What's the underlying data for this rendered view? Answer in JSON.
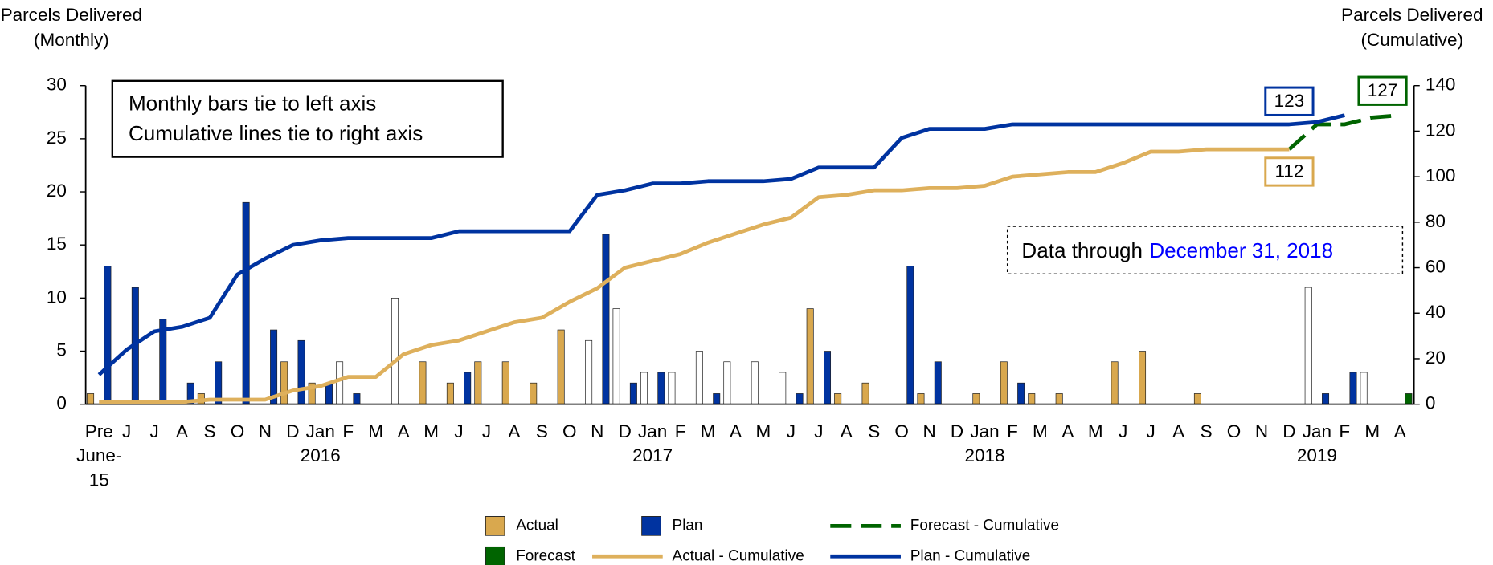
{
  "chart_data": {
    "type": "bar",
    "y_title": "Parcels Delivered\n(Monthly)",
    "y2_title": "Parcels Delivered\n(Cumulative)",
    "note": [
      "Monthly bars tie to left axis",
      "Cumulative lines tie to right axis"
    ],
    "data_through": {
      "text": "Data through",
      "date": "December 31, 2018",
      "date_color": "#0000ff"
    },
    "annotations": [
      {
        "text": "123",
        "color": "#0033a0"
      },
      {
        "text": "112",
        "color": "#d9a84e"
      },
      {
        "text": "127",
        "color": "#006400"
      }
    ],
    "categories": [
      "Pre",
      "J",
      "J",
      "A",
      "S",
      "O",
      "N",
      "D",
      "Jan",
      "F",
      "M",
      "A",
      "M",
      "J",
      "J",
      "A",
      "S",
      "O",
      "N",
      "D",
      "Jan",
      "F",
      "M",
      "A",
      "M",
      "J",
      "J",
      "A",
      "S",
      "O",
      "N",
      "D",
      "Jan",
      "F",
      "M",
      "A",
      "M",
      "J",
      "J",
      "A",
      "S",
      "O",
      "N",
      "D",
      "Jan",
      "F",
      "M",
      "A"
    ],
    "category_sublabels": [
      "June-\n15",
      null,
      null,
      null,
      null,
      null,
      null,
      null,
      "2016",
      null,
      null,
      null,
      null,
      null,
      null,
      null,
      null,
      null,
      null,
      null,
      "2017",
      null,
      null,
      null,
      null,
      null,
      null,
      null,
      null,
      null,
      null,
      null,
      "2018",
      null,
      null,
      null,
      null,
      null,
      null,
      null,
      null,
      null,
      null,
      null,
      "2019",
      null,
      null,
      null
    ],
    "ylim": [
      0,
      30
    ],
    "yticks": [
      0,
      5,
      10,
      15,
      20,
      25,
      30
    ],
    "y2lim": [
      0,
      140
    ],
    "y2ticks": [
      0,
      20,
      40,
      60,
      80,
      100,
      120,
      140
    ],
    "series": [
      {
        "name": "Actual",
        "type": "bar",
        "color": "#d9a84e",
        "values": [
          1,
          null,
          null,
          null,
          1,
          null,
          null,
          4,
          2,
          null,
          null,
          null,
          4,
          2,
          4,
          4,
          2,
          7,
          null,
          null,
          null,
          null,
          null,
          null,
          null,
          null,
          9,
          1,
          2,
          null,
          1,
          null,
          1,
          4,
          1,
          1,
          null,
          4,
          5,
          null,
          1,
          null,
          null,
          null,
          null,
          null,
          null,
          null
        ]
      },
      {
        "name": "Plan",
        "type": "bar",
        "color": "#0033a0",
        "values": [
          13,
          11,
          8,
          2,
          4,
          19,
          7,
          6,
          2,
          1,
          null,
          null,
          null,
          3,
          null,
          null,
          null,
          null,
          16,
          2,
          3,
          null,
          1,
          null,
          null,
          1,
          5,
          null,
          null,
          13,
          4,
          null,
          null,
          2,
          null,
          null,
          null,
          null,
          null,
          null,
          null,
          null,
          null,
          null,
          1,
          3,
          null,
          null
        ]
      },
      {
        "name": "Forecast - Cumulative",
        "type": "line",
        "axis": "y2",
        "dash": true,
        "color": "#006400",
        "values": [
          null,
          null,
          null,
          null,
          null,
          null,
          null,
          null,
          null,
          null,
          null,
          null,
          null,
          null,
          null,
          null,
          null,
          null,
          null,
          null,
          null,
          null,
          null,
          null,
          null,
          null,
          null,
          null,
          null,
          null,
          null,
          null,
          null,
          null,
          null,
          null,
          null,
          null,
          null,
          null,
          null,
          null,
          null,
          112,
          123,
          123,
          126,
          127
        ]
      },
      {
        "name": "Forecast",
        "type": "bar",
        "color": "#006400",
        "values": [
          null,
          null,
          null,
          null,
          null,
          null,
          null,
          null,
          null,
          null,
          null,
          null,
          null,
          null,
          null,
          null,
          null,
          null,
          null,
          null,
          null,
          null,
          null,
          null,
          null,
          null,
          null,
          null,
          null,
          null,
          null,
          null,
          null,
          null,
          null,
          null,
          null,
          null,
          null,
          null,
          null,
          null,
          null,
          null,
          null,
          null,
          null,
          1
        ]
      },
      {
        "name": "Actual - Cumulative",
        "type": "line",
        "axis": "y2",
        "color": "#deb05c",
        "values": [
          1,
          1,
          1,
          1,
          2,
          2,
          2,
          6,
          8,
          12,
          12,
          22,
          26,
          28,
          32,
          36,
          38,
          45,
          51,
          60,
          63,
          66,
          71,
          75,
          79,
          82,
          91,
          92,
          94,
          94,
          95,
          95,
          96,
          100,
          101,
          102,
          102,
          106,
          111,
          111,
          112,
          112,
          112,
          112,
          null,
          null,
          null,
          null
        ]
      },
      {
        "name": "Plan - Cumulative",
        "type": "line",
        "axis": "y2",
        "color": "#0033a0",
        "values": [
          13,
          24,
          32,
          34,
          38,
          57,
          64,
          70,
          72,
          73,
          73,
          73,
          73,
          76,
          76,
          76,
          76,
          76,
          92,
          94,
          97,
          97,
          98,
          98,
          98,
          99,
          104,
          104,
          104,
          117,
          121,
          121,
          121,
          123,
          123,
          123,
          123,
          123,
          123,
          123,
          123,
          123,
          123,
          123,
          124,
          127,
          null,
          null
        ]
      },
      {
        "name": null,
        "type": "bar",
        "color": "#ffffff",
        "values": [
          null,
          null,
          null,
          null,
          null,
          null,
          null,
          null,
          null,
          4,
          null,
          10,
          null,
          null,
          null,
          null,
          null,
          null,
          6,
          9,
          3,
          3,
          5,
          4,
          4,
          3,
          null,
          null,
          null,
          null,
          null,
          null,
          null,
          null,
          null,
          null,
          null,
          null,
          null,
          null,
          null,
          null,
          null,
          null,
          11,
          null,
          3,
          null
        ]
      }
    ]
  }
}
